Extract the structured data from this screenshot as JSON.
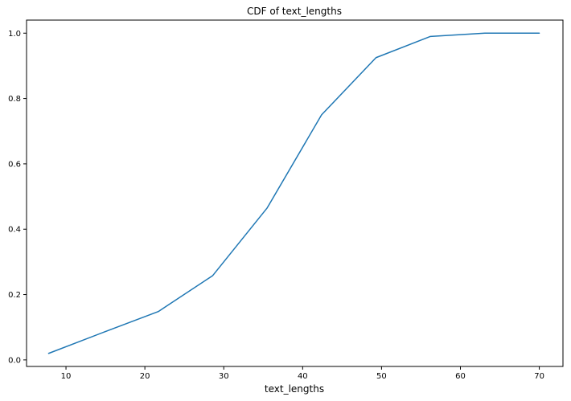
{
  "chart_data": {
    "type": "line",
    "title": "CDF of text_lengths",
    "xlabel": "text_lengths",
    "ylabel": "",
    "xlim": [
      5,
      73
    ],
    "ylim": [
      -0.02,
      1.04
    ],
    "xticks": [
      10,
      20,
      30,
      40,
      50,
      60,
      70
    ],
    "yticks": [
      0.0,
      0.2,
      0.4,
      0.6,
      0.8,
      1.0
    ],
    "xtick_labels": [
      "10",
      "20",
      "30",
      "40",
      "50",
      "60",
      "70"
    ],
    "ytick_labels": [
      "0.0",
      "0.2",
      "0.4",
      "0.6",
      "0.8",
      "1.0"
    ],
    "grid": false,
    "legend": "none",
    "series": [
      {
        "x": [
          7.8,
          14.8,
          21.7,
          28.6,
          35.5,
          42.4,
          49.3,
          56.2,
          63.1,
          70.0
        ],
        "y": [
          0.02,
          0.085,
          0.148,
          0.258,
          0.465,
          0.75,
          0.925,
          0.99,
          1.0,
          1.0
        ],
        "color": "#1f77b4"
      }
    ]
  }
}
